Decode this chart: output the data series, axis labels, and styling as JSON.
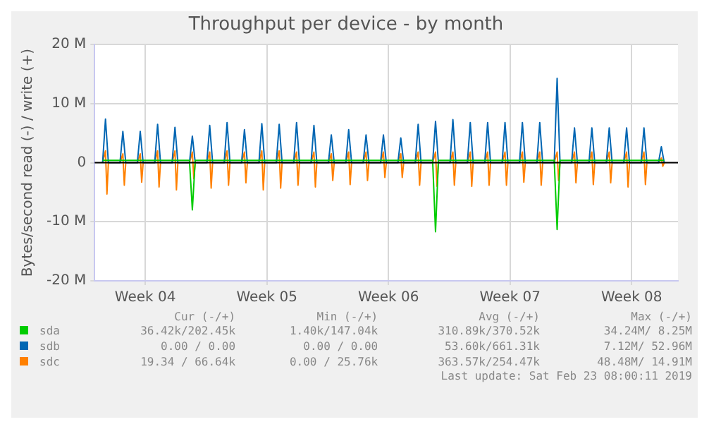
{
  "chart_data": {
    "type": "line",
    "title": "Throughput per device - by month",
    "ylabel": "Bytes/second read (-) / write (+)",
    "x": [
      "2019-01-21T19:00",
      "2019-01-21T23:00",
      "2019-01-22T03:00",
      "2019-01-22T19:00",
      "2019-01-22T23:00",
      "2019-01-23T03:00",
      "2019-01-23T19:00",
      "2019-01-23T23:00",
      "2019-01-24T03:00",
      "2019-01-24T19:00",
      "2019-01-24T23:00",
      "2019-01-25T03:00",
      "2019-01-25T19:00",
      "2019-01-25T23:00",
      "2019-01-26T03:00",
      "2019-01-26T19:00",
      "2019-01-26T23:00",
      "2019-01-27T03:00",
      "2019-01-27T19:00",
      "2019-01-27T23:00",
      "2019-01-28T03:00",
      "2019-01-28T19:00",
      "2019-01-28T23:00",
      "2019-01-29T03:00",
      "2019-01-29T19:00",
      "2019-01-29T23:00",
      "2019-01-30T03:00",
      "2019-01-30T19:00",
      "2019-01-30T23:00",
      "2019-01-31T03:00",
      "2019-01-31T19:00",
      "2019-01-31T23:00",
      "2019-02-01T03:00",
      "2019-02-01T19:00",
      "2019-02-01T23:00",
      "2019-02-02T03:00",
      "2019-02-02T19:00",
      "2019-02-02T23:00",
      "2019-02-03T03:00",
      "2019-02-03T19:00",
      "2019-02-03T23:00",
      "2019-02-04T03:00",
      "2019-02-04T19:00",
      "2019-02-04T23:00",
      "2019-02-05T03:00",
      "2019-02-05T19:00",
      "2019-02-05T23:00",
      "2019-02-06T03:00",
      "2019-02-06T19:00",
      "2019-02-06T23:00",
      "2019-02-07T03:00",
      "2019-02-07T19:00",
      "2019-02-07T23:00",
      "2019-02-08T03:00",
      "2019-02-08T19:00",
      "2019-02-08T23:00",
      "2019-02-09T03:00",
      "2019-02-09T19:00",
      "2019-02-09T23:00",
      "2019-02-10T03:00",
      "2019-02-10T19:00",
      "2019-02-10T23:00",
      "2019-02-11T03:00",
      "2019-02-11T19:00",
      "2019-02-11T23:00",
      "2019-02-12T03:00",
      "2019-02-12T19:00",
      "2019-02-12T23:00",
      "2019-02-13T03:00",
      "2019-02-13T19:00",
      "2019-02-13T23:00",
      "2019-02-14T03:00",
      "2019-02-14T19:00",
      "2019-02-14T23:00",
      "2019-02-15T03:00",
      "2019-02-15T19:00",
      "2019-02-15T23:00",
      "2019-02-16T03:00",
      "2019-02-16T19:00",
      "2019-02-16T23:00",
      "2019-02-17T03:00",
      "2019-02-17T19:00",
      "2019-02-17T23:00",
      "2019-02-18T03:00",
      "2019-02-18T19:00",
      "2019-02-18T23:00",
      "2019-02-19T03:00",
      "2019-02-19T19:00",
      "2019-02-19T23:00",
      "2019-02-20T03:00",
      "2019-02-20T19:00",
      "2019-02-20T23:00",
      "2019-02-21T03:00",
      "2019-02-21T19:00",
      "2019-02-21T23:00",
      "2019-02-22T03:00",
      "2019-02-22T19:00",
      "2019-02-22T23:00",
      "2019-02-23T03:00"
    ],
    "series": [
      {
        "name": "sda",
        "color": "#00cc00",
        "values": [
          400000,
          400000,
          400000,
          400000,
          400000,
          400000,
          400000,
          400000,
          400000,
          400000,
          400000,
          400000,
          400000,
          400000,
          400000,
          400000,
          -8000000,
          400000,
          400000,
          400000,
          400000,
          400000,
          400000,
          400000,
          400000,
          400000,
          400000,
          400000,
          400000,
          400000,
          400000,
          400000,
          400000,
          400000,
          400000,
          400000,
          400000,
          400000,
          400000,
          400000,
          400000,
          400000,
          400000,
          400000,
          400000,
          400000,
          400000,
          400000,
          400000,
          400000,
          400000,
          400000,
          400000,
          400000,
          400000,
          400000,
          400000,
          400000,
          -11700000,
          400000,
          400000,
          400000,
          400000,
          400000,
          400000,
          400000,
          400000,
          400000,
          400000,
          400000,
          400000,
          400000,
          400000,
          400000,
          400000,
          400000,
          400000,
          400000,
          400000,
          -11300000,
          400000,
          400000,
          400000,
          400000,
          400000,
          400000,
          400000,
          400000,
          400000,
          400000,
          400000,
          400000,
          400000,
          400000,
          400000,
          400000,
          400000,
          400000,
          400000
        ]
      },
      {
        "name": "sdb",
        "color": "#0066b3",
        "values": [
          0,
          7400000,
          0,
          0,
          5300000,
          0,
          0,
          5300000,
          0,
          0,
          6500000,
          0,
          0,
          6000000,
          0,
          0,
          4500000,
          0,
          0,
          6300000,
          0,
          0,
          6800000,
          0,
          0,
          5600000,
          0,
          0,
          6600000,
          0,
          0,
          6500000,
          0,
          0,
          6800000,
          0,
          0,
          6300000,
          0,
          0,
          4700000,
          0,
          0,
          5600000,
          0,
          0,
          4700000,
          0,
          0,
          4700000,
          0,
          0,
          4200000,
          0,
          0,
          6500000,
          0,
          0,
          7000000,
          0,
          0,
          7300000,
          0,
          0,
          6800000,
          0,
          0,
          6800000,
          0,
          0,
          6800000,
          0,
          0,
          6800000,
          0,
          0,
          6800000,
          0,
          0,
          14300000,
          0,
          0,
          5900000,
          0,
          0,
          5900000,
          0,
          0,
          5900000,
          0,
          0,
          5900000,
          0,
          0,
          5900000,
          0,
          0,
          2700000,
          0
        ]
      },
      {
        "name": "sdc",
        "color": "#ff8000",
        "x": [
          "2019-01-21T19:00",
          "2019-01-21T23:00",
          "2019-01-22T01:00",
          "2019-01-22T03:00",
          "2019-01-22T19:00",
          "2019-01-22T23:00",
          "2019-01-23T01:00",
          "2019-01-23T03:00",
          "2019-01-23T19:00",
          "2019-01-23T23:00",
          "2019-01-24T01:00",
          "2019-01-24T03:00",
          "2019-01-24T19:00",
          "2019-01-24T23:00",
          "2019-01-25T01:00",
          "2019-01-25T03:00",
          "2019-01-25T19:00",
          "2019-01-25T23:00",
          "2019-01-26T01:00",
          "2019-01-26T03:00",
          "2019-01-26T19:00",
          "2019-01-26T23:00",
          "2019-01-27T01:00",
          "2019-01-27T03:00",
          "2019-01-27T19:00",
          "2019-01-27T23:00",
          "2019-01-28T01:00",
          "2019-01-28T03:00",
          "2019-01-28T19:00",
          "2019-01-28T23:00",
          "2019-01-29T01:00",
          "2019-01-29T03:00",
          "2019-01-29T19:00",
          "2019-01-29T23:00",
          "2019-01-30T01:00",
          "2019-01-30T03:00",
          "2019-01-30T19:00",
          "2019-01-30T23:00",
          "2019-01-31T01:00",
          "2019-01-31T03:00",
          "2019-01-31T19:00",
          "2019-01-31T23:00",
          "2019-02-01T01:00",
          "2019-02-01T03:00",
          "2019-02-01T19:00",
          "2019-02-01T23:00",
          "2019-02-02T01:00",
          "2019-02-02T03:00",
          "2019-02-02T19:00",
          "2019-02-02T23:00",
          "2019-02-03T01:00",
          "2019-02-03T03:00",
          "2019-02-03T19:00",
          "2019-02-03T23:00",
          "2019-02-04T01:00",
          "2019-02-04T03:00",
          "2019-02-04T19:00",
          "2019-02-04T23:00",
          "2019-02-05T01:00",
          "2019-02-05T03:00",
          "2019-02-05T19:00",
          "2019-02-05T23:00",
          "2019-02-06T01:00",
          "2019-02-06T03:00",
          "2019-02-06T19:00",
          "2019-02-06T23:00",
          "2019-02-07T01:00",
          "2019-02-07T03:00",
          "2019-02-07T19:00",
          "2019-02-07T23:00",
          "2019-02-08T01:00",
          "2019-02-08T03:00",
          "2019-02-08T19:00",
          "2019-02-08T23:00",
          "2019-02-09T01:00",
          "2019-02-09T03:00",
          "2019-02-09T19:00",
          "2019-02-09T23:00",
          "2019-02-10T01:00",
          "2019-02-10T03:00",
          "2019-02-10T19:00",
          "2019-02-10T23:00",
          "2019-02-11T01:00",
          "2019-02-11T03:00",
          "2019-02-11T19:00",
          "2019-02-11T23:00",
          "2019-02-12T01:00",
          "2019-02-12T03:00",
          "2019-02-12T19:00",
          "2019-02-12T23:00",
          "2019-02-13T01:00",
          "2019-02-13T03:00",
          "2019-02-13T19:00",
          "2019-02-13T23:00",
          "2019-02-14T01:00",
          "2019-02-14T03:00",
          "2019-02-14T19:00",
          "2019-02-14T23:00",
          "2019-02-15T01:00",
          "2019-02-15T03:00",
          "2019-02-15T19:00",
          "2019-02-15T23:00",
          "2019-02-16T01:00",
          "2019-02-16T03:00",
          "2019-02-16T19:00",
          "2019-02-16T23:00",
          "2019-02-17T01:00",
          "2019-02-17T03:00",
          "2019-02-17T19:00",
          "2019-02-17T23:00",
          "2019-02-18T01:00",
          "2019-02-18T03:00",
          "2019-02-18T19:00",
          "2019-02-18T23:00",
          "2019-02-19T01:00",
          "2019-02-19T03:00",
          "2019-02-19T19:00",
          "2019-02-19T23:00",
          "2019-02-20T01:00",
          "2019-02-20T03:00",
          "2019-02-20T19:00",
          "2019-02-20T23:00",
          "2019-02-21T01:00",
          "2019-02-21T03:00",
          "2019-02-21T19:00",
          "2019-02-21T23:00",
          "2019-02-22T01:00",
          "2019-02-22T03:00",
          "2019-02-22T19:00",
          "2019-02-22T23:00",
          "2019-02-23T01:00",
          "2019-02-23T03:00"
        ],
        "values": [
          0,
          2000000,
          -5300000,
          0,
          0,
          1500000,
          -3800000,
          0,
          0,
          1500000,
          -3300000,
          0,
          0,
          2000000,
          -4100000,
          0,
          0,
          2000000,
          -4600000,
          0,
          0,
          1800000,
          -2700000,
          0,
          0,
          1800000,
          -4300000,
          0,
          0,
          2000000,
          -3800000,
          0,
          0,
          1800000,
          -3400000,
          0,
          0,
          2000000,
          -4600000,
          0,
          0,
          2000000,
          -4300000,
          0,
          0,
          1800000,
          -3800000,
          0,
          0,
          1800000,
          -4100000,
          0,
          0,
          1500000,
          -3000000,
          0,
          0,
          1800000,
          -3700000,
          0,
          0,
          1800000,
          -3000000,
          0,
          0,
          1800000,
          -2500000,
          0,
          0,
          1500000,
          -2500000,
          0,
          0,
          1800000,
          -3800000,
          0,
          0,
          1800000,
          -4000000,
          0,
          0,
          1800000,
          -3800000,
          0,
          0,
          1800000,
          -4000000,
          0,
          0,
          1800000,
          -3800000,
          0,
          0,
          1800000,
          -3800000,
          0,
          0,
          1800000,
          -3300000,
          0,
          0,
          1800000,
          -3800000,
          0,
          0,
          1800000,
          -3000000,
          0,
          0,
          1800000,
          -3400000,
          0,
          0,
          1800000,
          -3700000,
          0,
          0,
          1800000,
          -3400000,
          0,
          0,
          1800000,
          -4100000,
          0,
          0,
          1800000,
          -3700000,
          0,
          0,
          800000,
          -600000,
          0
        ]
      }
    ],
    "xlim": [
      "2019-01-21T08:00",
      "2019-02-23T22:00"
    ],
    "xticks": [
      {
        "value": "2019-01-24T06:00",
        "label": "Week 04"
      },
      {
        "value": "2019-01-31T06:00",
        "label": "Week 05"
      },
      {
        "value": "2019-02-07T06:00",
        "label": "Week 06"
      },
      {
        "value": "2019-02-14T06:00",
        "label": "Week 07"
      },
      {
        "value": "2019-02-21T06:00",
        "label": "Week 08"
      }
    ],
    "ylim": [
      -20000000,
      20000000
    ],
    "yticks": [
      {
        "value": -20000000,
        "label": "-20 M"
      },
      {
        "value": -10000000,
        "label": "-10 M"
      },
      {
        "value": 0,
        "label": "0"
      },
      {
        "value": 10000000,
        "label": "10 M"
      },
      {
        "value": 20000000,
        "label": "20 M"
      }
    ],
    "ref_lines": [
      {
        "axis": "y",
        "value": 0,
        "color": "#000000"
      }
    ],
    "grid": true,
    "legend": "bottom",
    "marker": "none",
    "annotations": [
      "Cur (-/+)",
      "Min (-/+)",
      "Avg (-/+)",
      "Max (-/+)",
      "36.42k/202.45k",
      "1.40k/147.04k",
      "310.89k/370.52k",
      "34.24M/ 8.25M",
      "0.00 / 0.00",
      "0.00 / 0.00",
      "53.60k/661.31k",
      "7.12M/ 52.96M",
      "19.34 / 66.64k",
      "0.00 / 25.76k",
      "363.57k/254.47k",
      "48.48M/ 14.91M",
      "Last update: Sat Feb 23 08:00:11 2019"
    ]
  }
}
